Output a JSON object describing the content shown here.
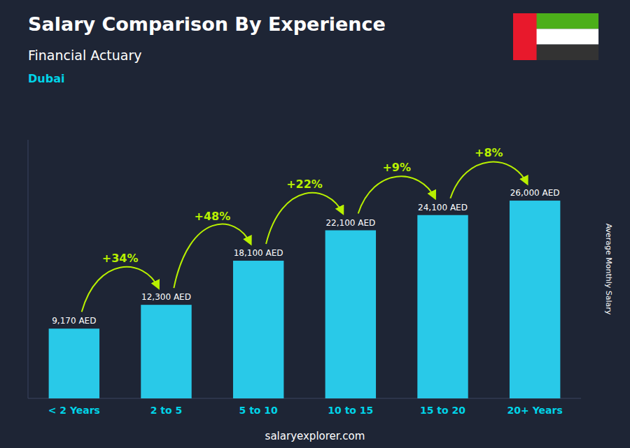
{
  "chart_data": {
    "type": "bar",
    "title": "Salary Comparison By Experience",
    "subtitle": [
      "Financial Actuary",
      "Dubai"
    ],
    "ylabel": "Average Monthly Salary",
    "footer": "salaryexplorer.com",
    "categories": [
      "< 2 Years",
      "2 to 5",
      "5 to 10",
      "10 to 15",
      "15 to 20",
      "20+ Years"
    ],
    "values": [
      9170,
      12300,
      18100,
      22100,
      24100,
      26000
    ],
    "value_labels": [
      "9,170 AED",
      "12,300 AED",
      "18,100 AED",
      "22,100 AED",
      "24,100 AED",
      "26,000 AED"
    ],
    "annotations": [
      "+34%",
      "+48%",
      "+22%",
      "+9%",
      "+8%"
    ],
    "color": "#29c9e8",
    "ylim": [
      0,
      34000
    ],
    "data_labels": true,
    "tick_labels": "x"
  }
}
